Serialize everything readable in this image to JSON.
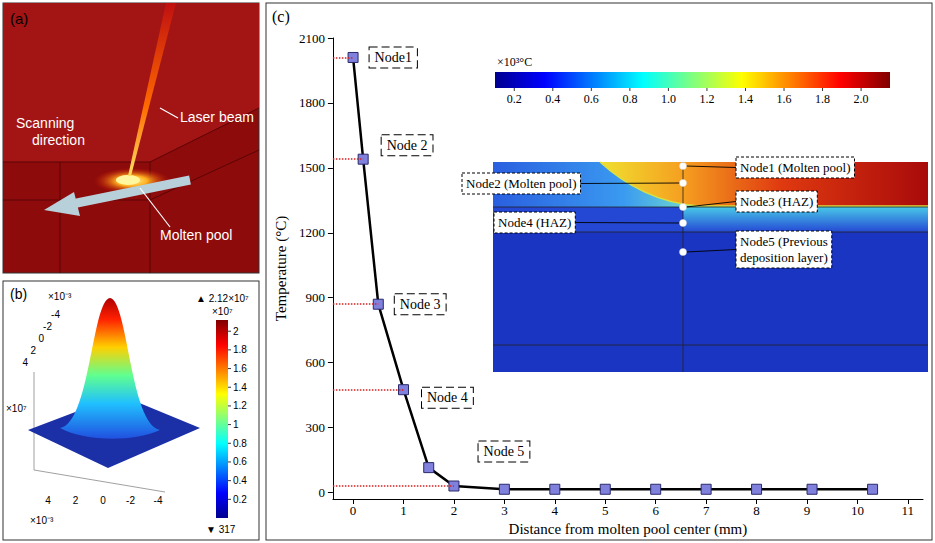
{
  "chart_data": {
    "type": "line",
    "panel_label": "(c)",
    "xlabel": "Distance from molten pool center (mm)",
    "ylabel": "Temperature (°C)",
    "x": [
      0,
      0.2,
      0.5,
      1.0,
      1.5,
      2.0,
      3,
      4,
      5,
      6,
      7,
      8,
      9.1,
      10.3
    ],
    "values": [
      2010,
      1540,
      870,
      475,
      115,
      30,
      15,
      15,
      15,
      15,
      15,
      15,
      15,
      15
    ],
    "node_labels": [
      "Node1",
      "Node 2",
      "Node 3",
      "Node 4",
      null,
      "Node 5",
      null,
      null,
      null,
      null,
      null,
      null,
      null,
      null
    ],
    "color": "#8080dd",
    "marker": "square",
    "grid": false,
    "xlim": [
      -0.4,
      11.3
    ],
    "xticks": [
      0,
      1,
      2,
      3,
      4,
      5,
      6,
      7,
      8,
      9,
      10,
      11
    ],
    "ylim": [
      -30,
      2100
    ],
    "yticks": [
      0,
      300,
      600,
      900,
      1200,
      1500,
      1800,
      2100
    ],
    "inset": {
      "colorbar_label": "×10³°C",
      "colorbar_lim": [
        0.1,
        2.15
      ],
      "colorbar_ticks": [
        0.2,
        0.4,
        0.6,
        0.8,
        {
          "value": 1,
          "label": "1.0"
        },
        1.2,
        1.4,
        1.6,
        1.8,
        {
          "value": 2,
          "label": "2.0"
        }
      ],
      "annotations": [
        "Node1 (Molten pool)",
        "Node2 (Molten pool)",
        "Node3 (HAZ)",
        "Node4 (HAZ)",
        "Node5 (Previous deposition layer)"
      ]
    }
  },
  "panel_a": {
    "panel_label": "(a)",
    "laser": "Laser beam",
    "scan": "Scanning direction",
    "pool": "Molten pool"
  },
  "panel_b": {
    "panel_label": "(b)",
    "y_scale": "×10⁻³",
    "y_ticks": [
      -4,
      -2,
      0,
      2,
      4
    ],
    "x_scale": "×10⁻³",
    "x_ticks": [
      4,
      2,
      0,
      -2,
      -4
    ],
    "z_scale": "×10⁷",
    "colorbar": {
      "scale": "×10⁷",
      "lim": [
        3.17e-05,
        2.12
      ],
      "ticks": [
        0.2,
        0.4,
        0.6,
        0.8,
        1,
        1.2,
        1.4,
        1.6,
        1.8,
        2
      ],
      "max_label": "▲ 2.12×10⁷",
      "min_label": "▼ 317"
    }
  }
}
